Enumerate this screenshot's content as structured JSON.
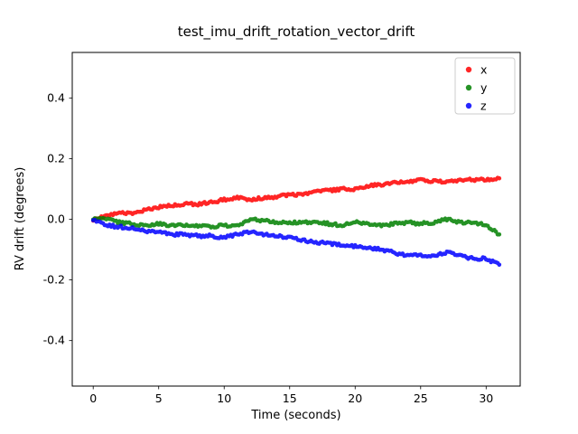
{
  "figure": {
    "background": "#ffffff"
  },
  "chart_data": {
    "type": "scatter",
    "title": "test_imu_drift_rotation_vector_drift",
    "xlabel": "Time (seconds)",
    "ylabel": "RV drift (degrees)",
    "xlim": [
      -1.6,
      32.6
    ],
    "ylim": [
      -0.55,
      0.55
    ],
    "xticks": [
      0,
      5,
      10,
      15,
      20,
      25,
      30
    ],
    "yticks": [
      -0.4,
      -0.2,
      0.0,
      0.2,
      0.4
    ],
    "grid": false,
    "legend": {
      "position": "upper right",
      "entries": [
        {
          "label": "x",
          "color": "#ff0000"
        },
        {
          "label": "y",
          "color": "#008000"
        },
        {
          "label": "z",
          "color": "#0000ff"
        }
      ]
    },
    "x": [
      0,
      1,
      2,
      3,
      4,
      5,
      6,
      7,
      8,
      9,
      10,
      11,
      12,
      13,
      14,
      15,
      16,
      17,
      18,
      19,
      20,
      21,
      22,
      23,
      24,
      25,
      26,
      27,
      28,
      29,
      30,
      31
    ],
    "series": [
      {
        "name": "x",
        "color": "#ff0000",
        "values": [
          0.0,
          0.01,
          0.02,
          0.02,
          0.03,
          0.04,
          0.045,
          0.05,
          0.05,
          0.055,
          0.065,
          0.07,
          0.065,
          0.07,
          0.075,
          0.08,
          0.08,
          0.09,
          0.095,
          0.1,
          0.1,
          0.11,
          0.115,
          0.12,
          0.125,
          0.13,
          0.125,
          0.125,
          0.13,
          0.13,
          0.13,
          0.135
        ]
      },
      {
        "name": "y",
        "color": "#008000",
        "values": [
          0.0,
          0.0,
          -0.01,
          -0.015,
          -0.02,
          -0.015,
          -0.02,
          -0.02,
          -0.02,
          -0.025,
          -0.02,
          -0.02,
          0.0,
          -0.005,
          -0.01,
          -0.01,
          -0.01,
          -0.01,
          -0.015,
          -0.02,
          -0.01,
          -0.015,
          -0.02,
          -0.015,
          -0.01,
          -0.015,
          -0.01,
          0.0,
          -0.01,
          -0.01,
          -0.02,
          -0.05
        ]
      },
      {
        "name": "z",
        "color": "#0000ff",
        "values": [
          0.0,
          -0.02,
          -0.025,
          -0.03,
          -0.04,
          -0.04,
          -0.05,
          -0.05,
          -0.055,
          -0.055,
          -0.06,
          -0.05,
          -0.04,
          -0.05,
          -0.055,
          -0.06,
          -0.07,
          -0.075,
          -0.08,
          -0.085,
          -0.09,
          -0.095,
          -0.1,
          -0.11,
          -0.12,
          -0.12,
          -0.12,
          -0.11,
          -0.12,
          -0.13,
          -0.13,
          -0.15
        ]
      }
    ]
  }
}
